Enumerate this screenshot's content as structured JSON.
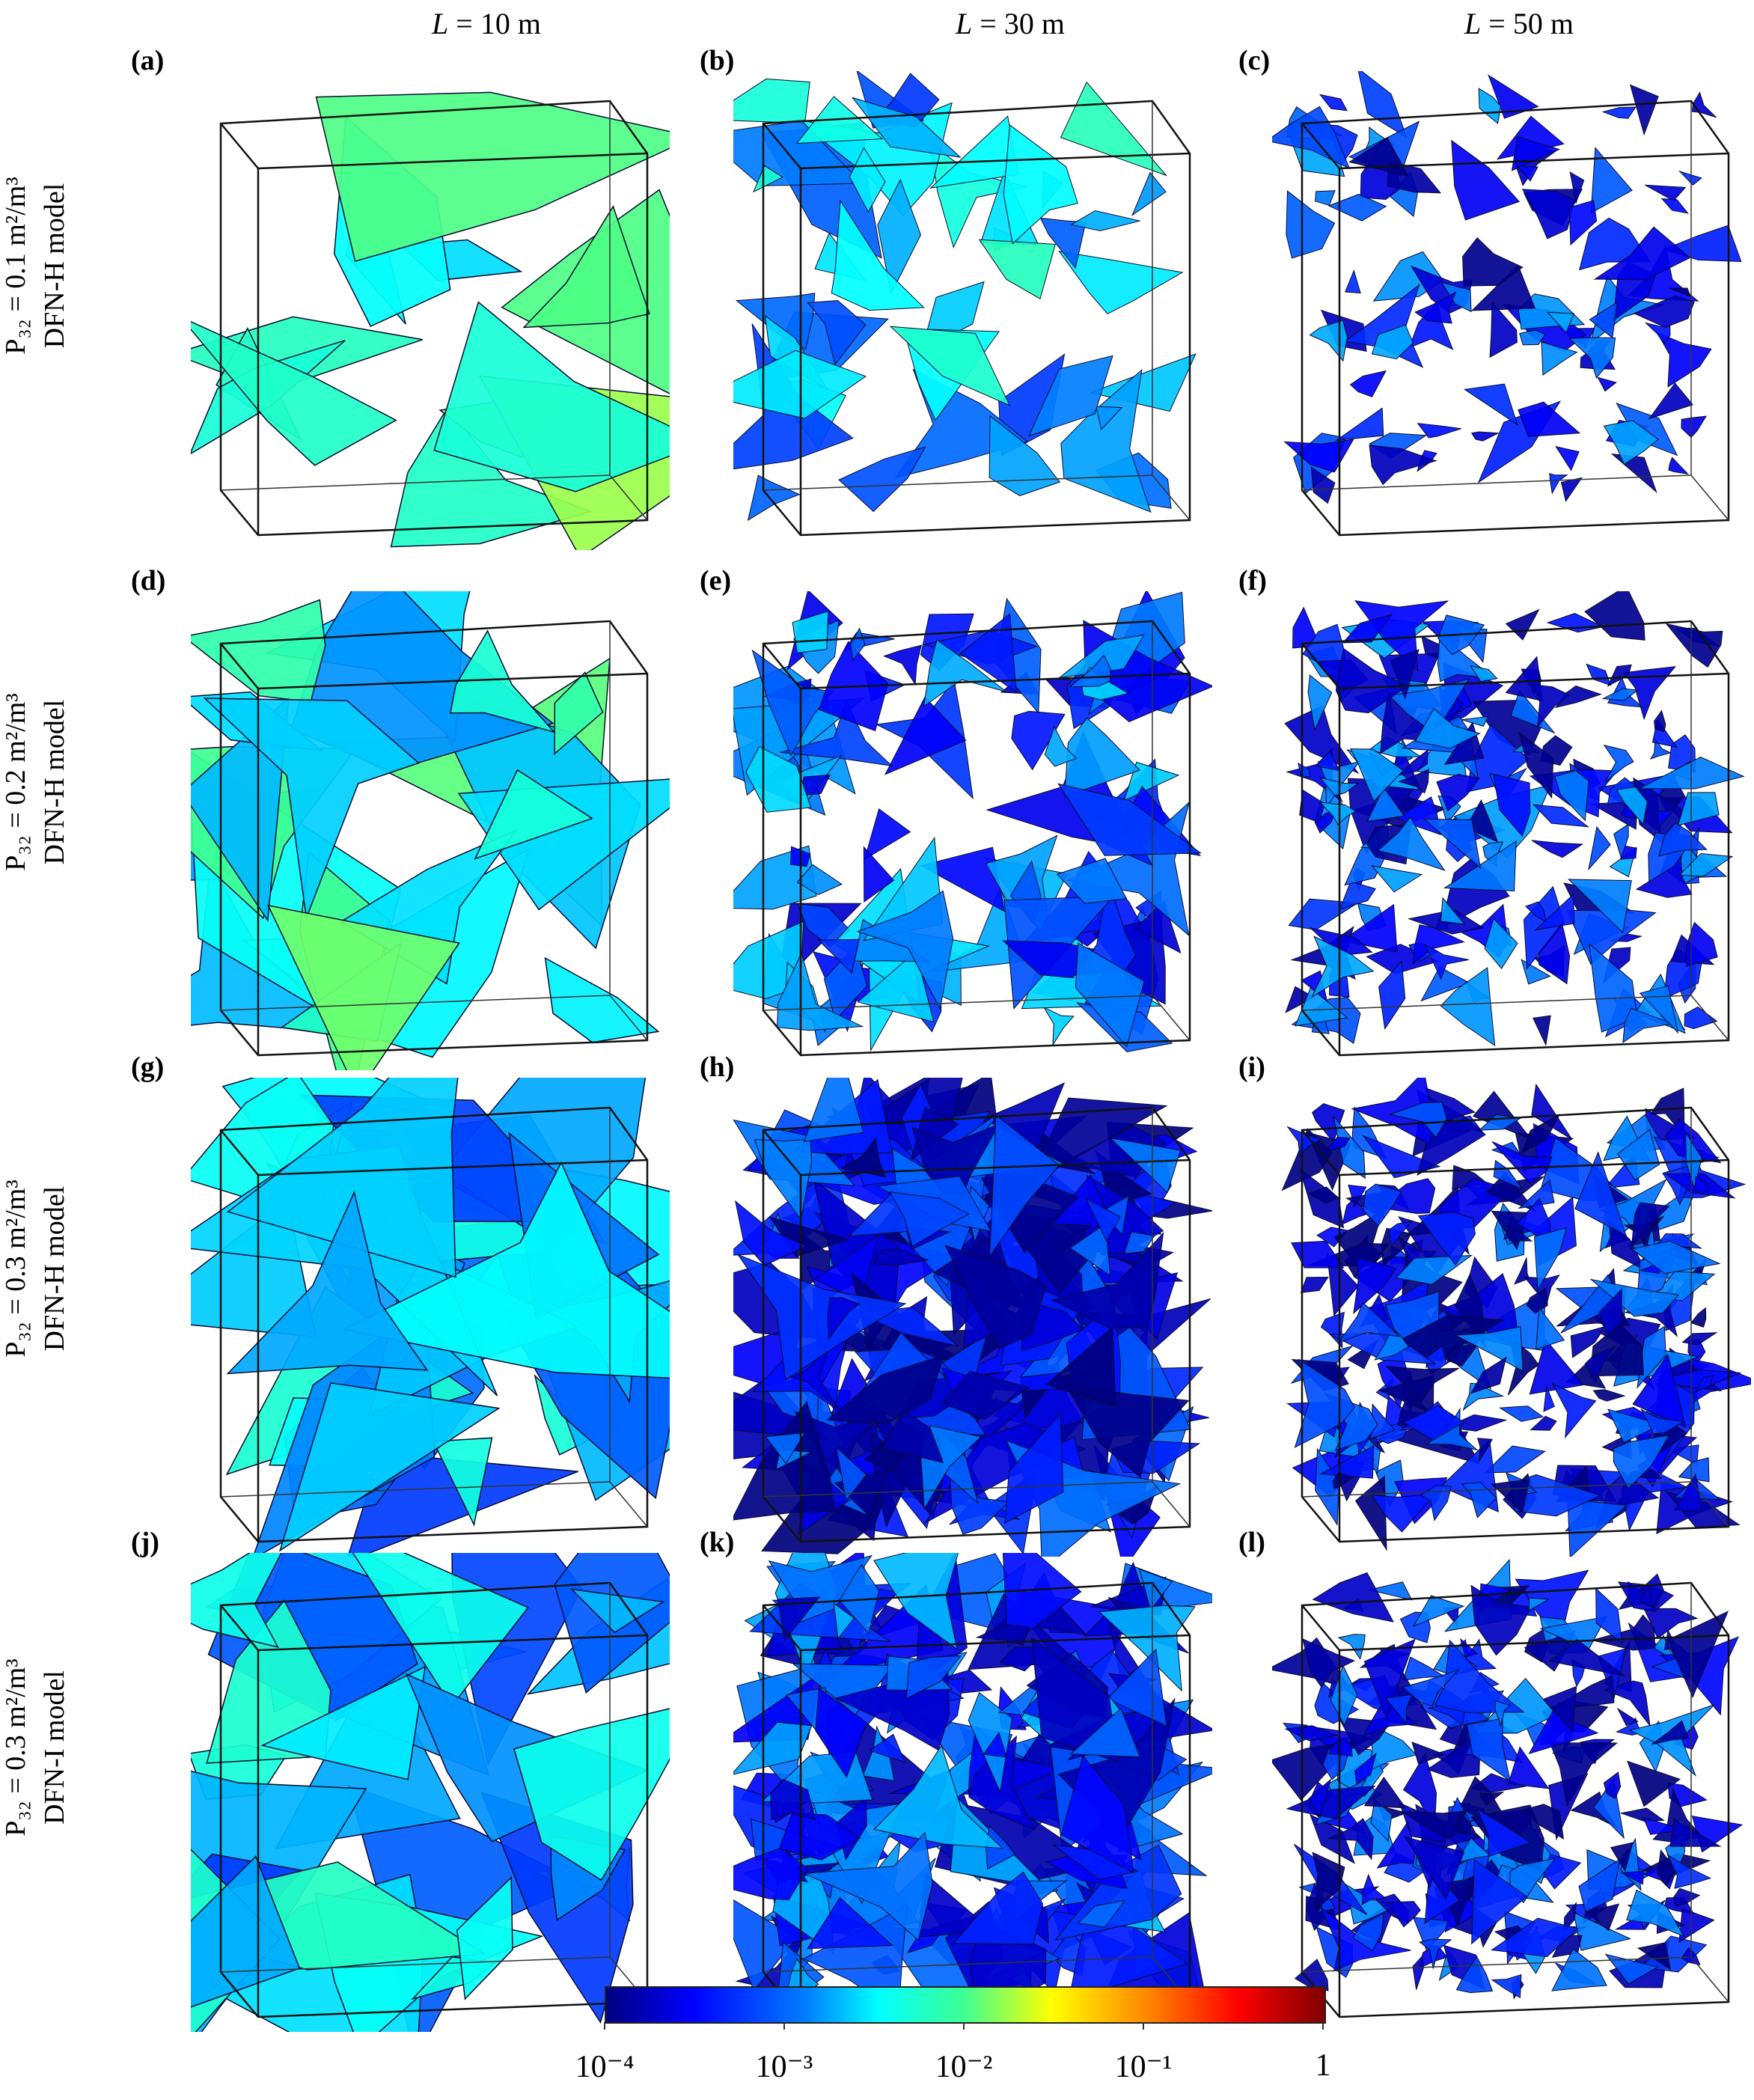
{
  "columns": [
    {
      "prefix": "L",
      "rest": " = 10 m"
    },
    {
      "prefix": "L",
      "rest": " = 30 m"
    },
    {
      "prefix": "L",
      "rest": " = 50 m"
    }
  ],
  "rows": [
    {
      "line1": "P₃₂ = 0.1 m²/m³",
      "line2": "DFN-H model"
    },
    {
      "line1": "P₃₂ = 0.2 m²/m³",
      "line2": "DFN-H model"
    },
    {
      "line1": "P₃₂ = 0.3 m²/m³",
      "line2": "DFN-H model"
    },
    {
      "line1": "P₃₂ = 0.3 m²/m³",
      "line2": "DFN-I model"
    }
  ],
  "panels": [
    "(a)",
    "(b)",
    "(c)",
    "(d)",
    "(e)",
    "(f)",
    "(g)",
    "(h)",
    "(i)",
    "(j)",
    "(k)",
    "(l)"
  ],
  "colorbar": {
    "colors": [
      "#00007f",
      "#0000ff",
      "#0080ff",
      "#00ffff",
      "#40ff90",
      "#ffff00",
      "#ff8000",
      "#ff0000",
      "#7f0000"
    ],
    "ticks": [
      "10⁻⁴",
      "10⁻³",
      "10⁻²",
      "10⁻¹",
      "1"
    ]
  }
}
